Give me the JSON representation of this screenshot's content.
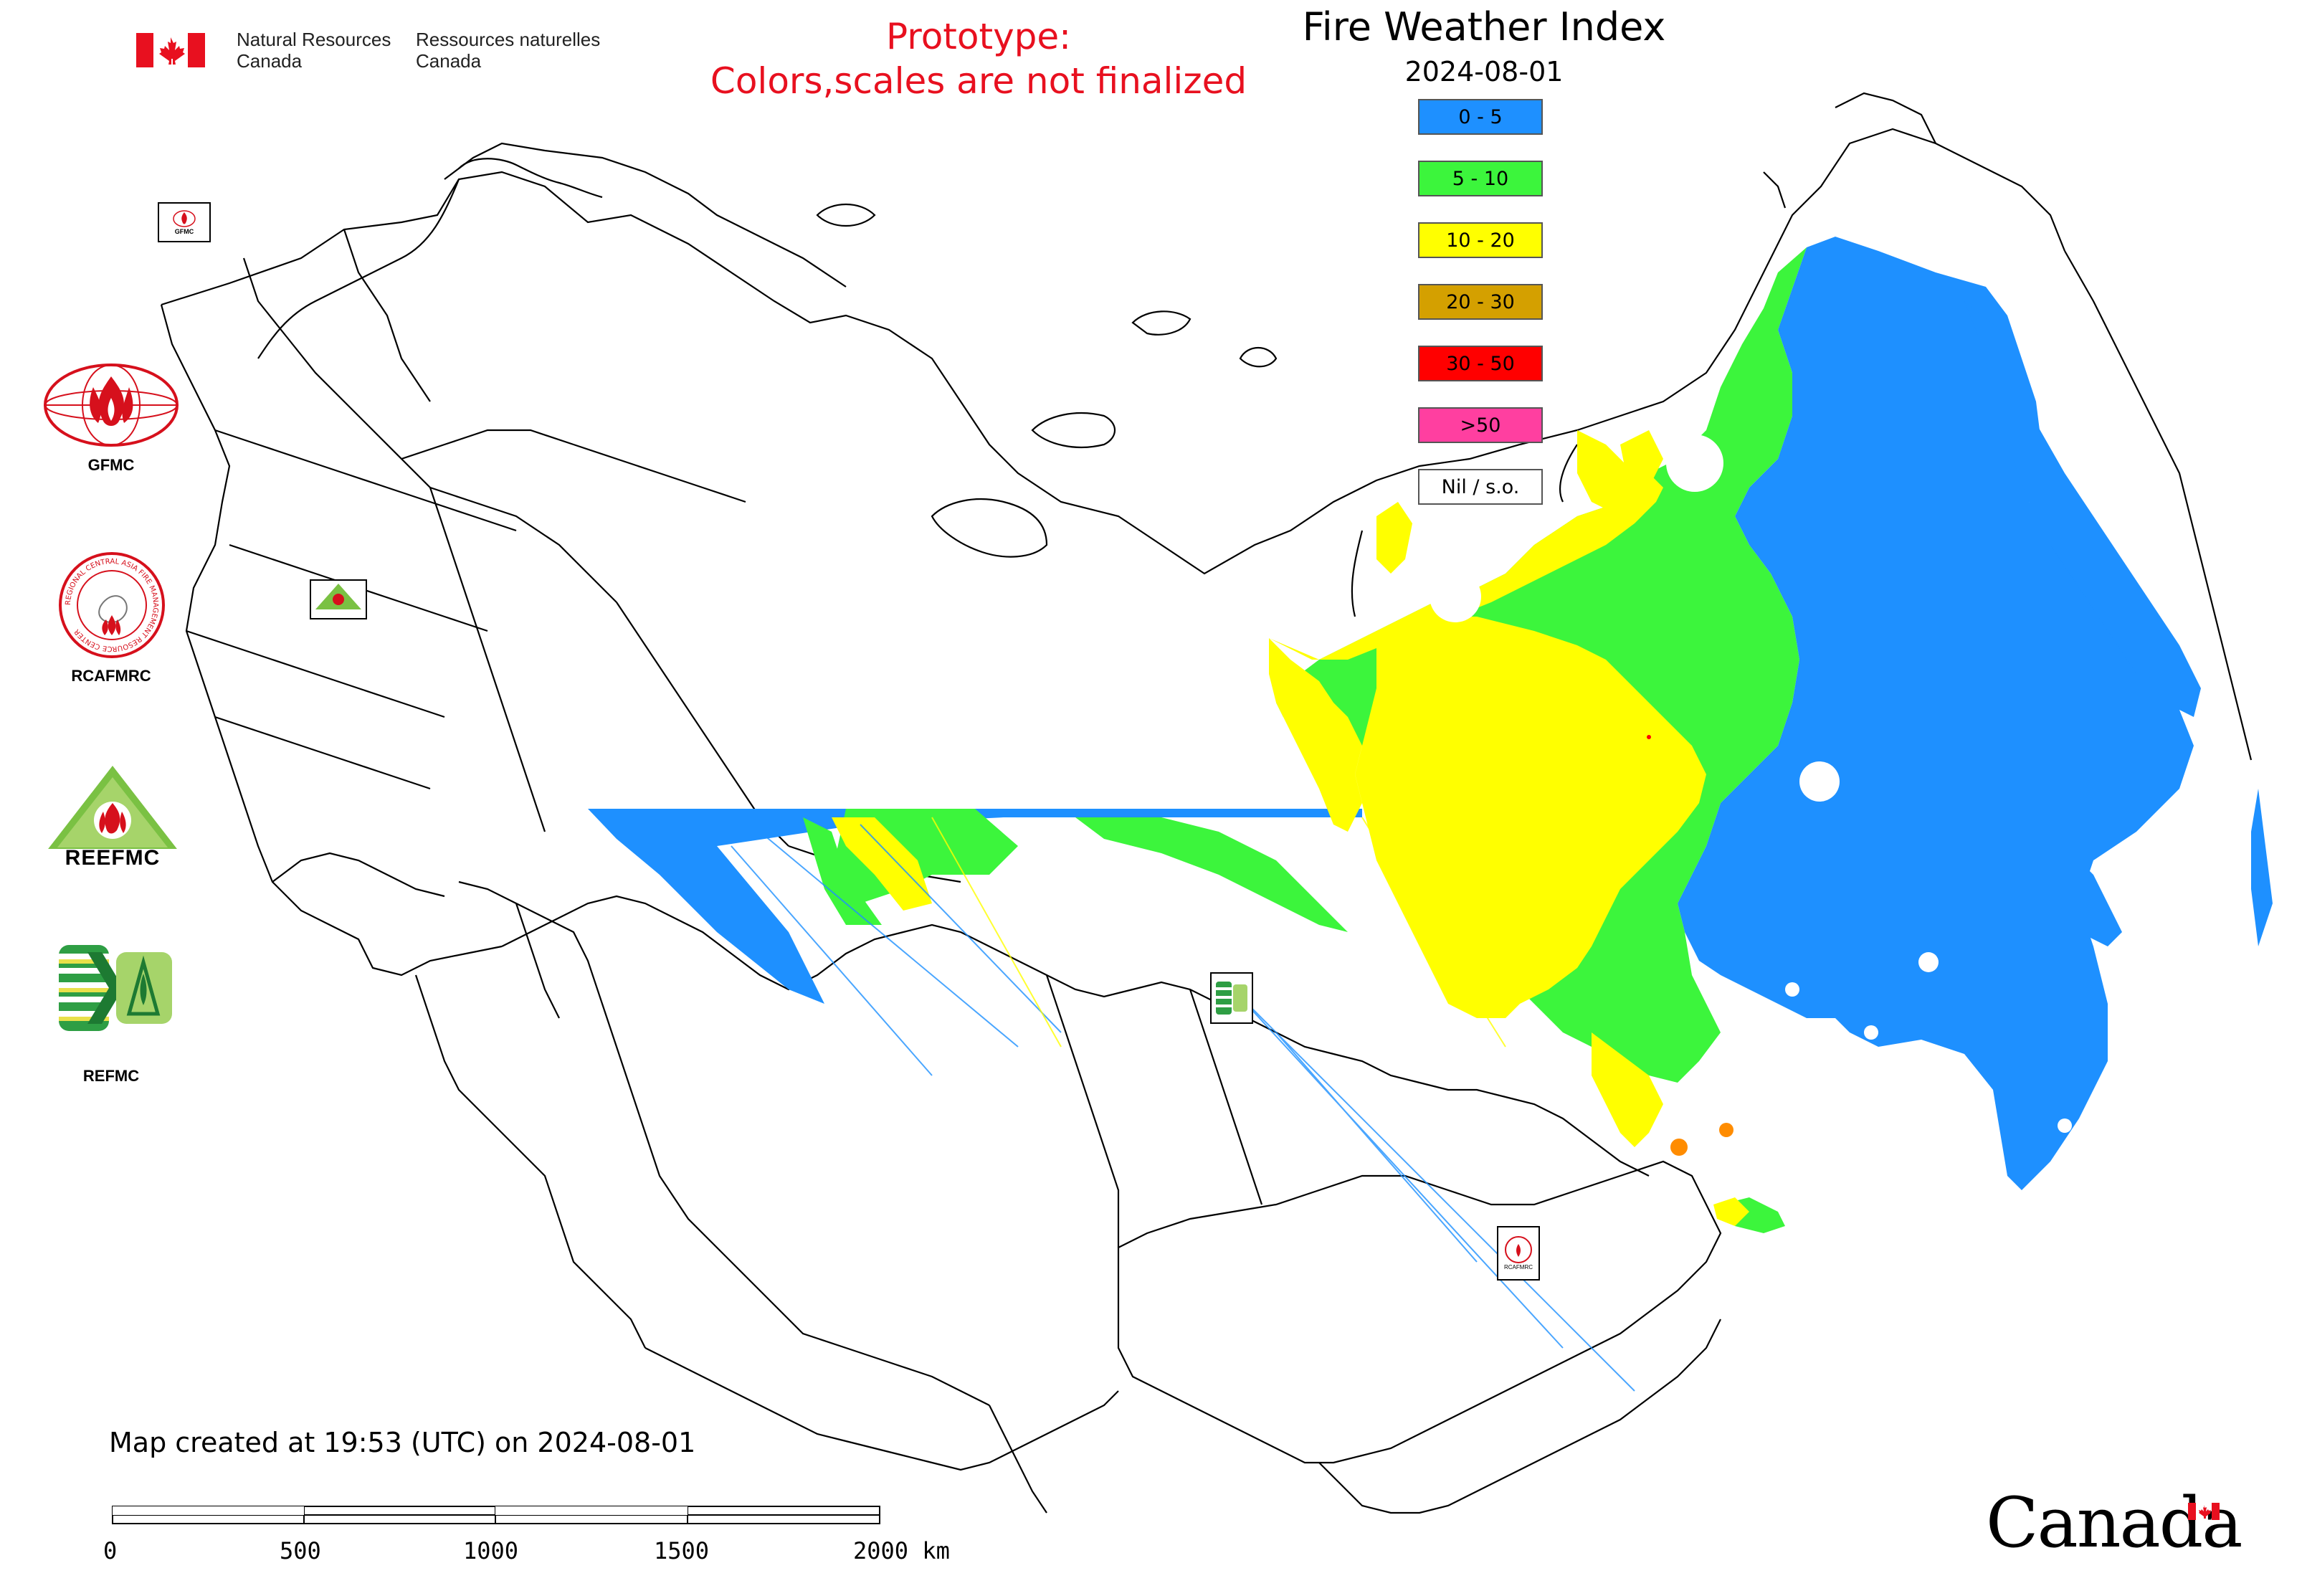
{
  "header": {
    "dept_en_line1": "Natural Resources",
    "dept_en_line2": "Canada",
    "dept_fr_line1": "Ressources naturelles",
    "dept_fr_line2": "Canada"
  },
  "prototype_notice": {
    "line1": "Prototype:",
    "line2": "Colors,scales are not finalized"
  },
  "map": {
    "title": "Fire Weather Index",
    "date": "2024-08-01",
    "created": "Map created at 19:53 (UTC) on 2024-08-01",
    "legend": [
      {
        "label": "0 - 5",
        "color": "#1e90ff"
      },
      {
        "label": "5 - 10",
        "color": "#3cf53c"
      },
      {
        "label": "10 - 20",
        "color": "#ffff00"
      },
      {
        "label": "20 - 30",
        "color": "#d4a000"
      },
      {
        "label": "30 - 50",
        "color": "#ff0000"
      },
      {
        "label": ">50",
        "color": "#ff3fa0"
      },
      {
        "label": "Nil / s.o.",
        "color": "#ffffff"
      }
    ],
    "scale_bar": {
      "labels": [
        "0",
        "500",
        "1000",
        "1500",
        "2000 km"
      ]
    }
  },
  "logos": {
    "gfmc": "GFMC",
    "rcafmrc": "RCAFMRC",
    "reefmc": "REEFMC",
    "refmc": "REFMC",
    "rcafmrc_ring_text": "REGIONAL CENTRAL ASIA FIRE MANAGEMENT RESOURCE CENTER"
  },
  "wordmark": "Canada"
}
